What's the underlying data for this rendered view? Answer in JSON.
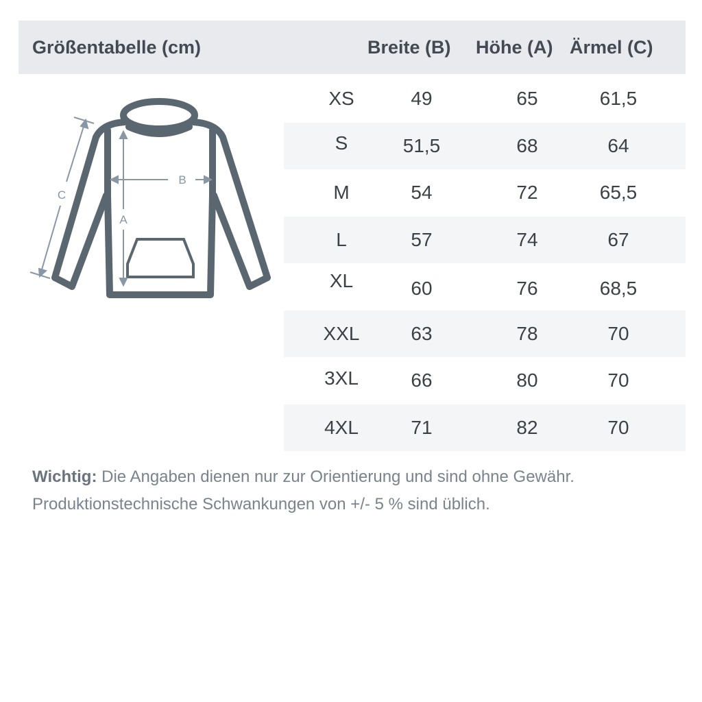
{
  "header": {
    "title": "Größentabelle (cm)",
    "columns": [
      "Breite (B)",
      "Höhe (A)",
      "Ärmel (C)"
    ]
  },
  "diagram": {
    "labels": {
      "width": "B",
      "height": "A",
      "sleeve": "C"
    },
    "outline_color": "#5a6670",
    "arrow_color": "#8896a6"
  },
  "rows": [
    {
      "size": "XS",
      "breite": "49",
      "hoehe": "65",
      "aermel": "61,5"
    },
    {
      "size": "S",
      "breite": "51,5",
      "hoehe": "68",
      "aermel": "64"
    },
    {
      "size": "M",
      "breite": "54",
      "hoehe": "72",
      "aermel": "65,5"
    },
    {
      "size": "L",
      "breite": "57",
      "hoehe": "74",
      "aermel": "67"
    },
    {
      "size": "XL",
      "breite": "60",
      "hoehe": "76",
      "aermel": "68,5"
    },
    {
      "size": "XXL",
      "breite": "63",
      "hoehe": "78",
      "aermel": "70"
    },
    {
      "size": "3XL",
      "breite": "66",
      "hoehe": "80",
      "aermel": "70"
    },
    {
      "size": "4XL",
      "breite": "71",
      "hoehe": "82",
      "aermel": "70"
    }
  ],
  "note": {
    "label": "Wichtig:",
    "line1": " Die Angaben dienen nur zur Orientierung und sind ohne Gewähr.",
    "line2": "Produktionstechnische Schwankungen von +/- 5 % sind üblich."
  }
}
